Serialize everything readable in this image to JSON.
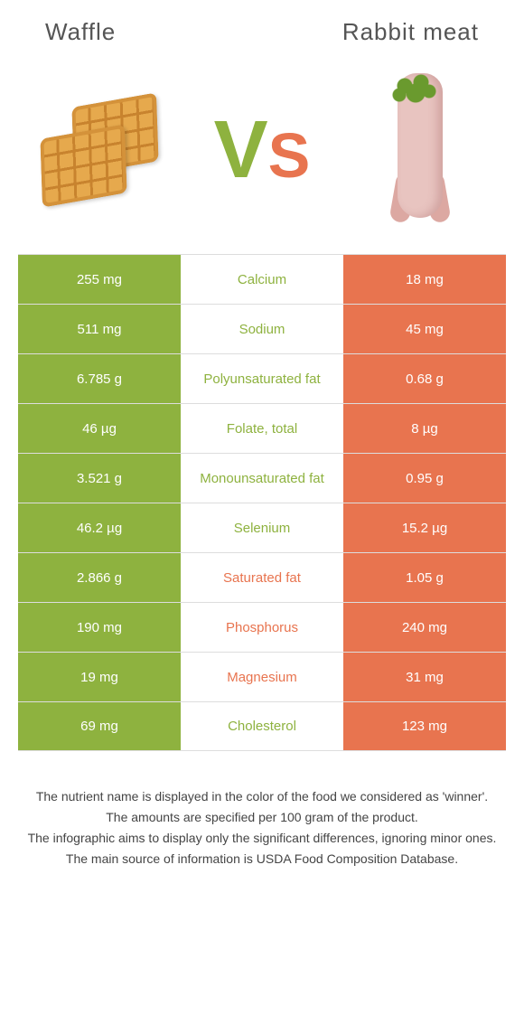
{
  "foods": {
    "left": {
      "name": "Waffle",
      "color": "#8eb23f"
    },
    "right": {
      "name": "Rabbit meat",
      "color": "#e8744f"
    }
  },
  "vs": {
    "v": "V",
    "s": "S",
    "v_color": "#8eb23f",
    "s_color": "#e8744f"
  },
  "rows": [
    {
      "nutrient": "Calcium",
      "left": "255 mg",
      "right": "18 mg",
      "winner": "left"
    },
    {
      "nutrient": "Sodium",
      "left": "511 mg",
      "right": "45 mg",
      "winner": "left"
    },
    {
      "nutrient": "Polyunsaturated fat",
      "left": "6.785 g",
      "right": "0.68 g",
      "winner": "left"
    },
    {
      "nutrient": "Folate, total",
      "left": "46 µg",
      "right": "8 µg",
      "winner": "left"
    },
    {
      "nutrient": "Monounsaturated fat",
      "left": "3.521 g",
      "right": "0.95 g",
      "winner": "left"
    },
    {
      "nutrient": "Selenium",
      "left": "46.2 µg",
      "right": "15.2 µg",
      "winner": "left"
    },
    {
      "nutrient": "Saturated fat",
      "left": "2.866 g",
      "right": "1.05 g",
      "winner": "right"
    },
    {
      "nutrient": "Phosphorus",
      "left": "190 mg",
      "right": "240 mg",
      "winner": "right"
    },
    {
      "nutrient": "Magnesium",
      "left": "19 mg",
      "right": "31 mg",
      "winner": "right"
    },
    {
      "nutrient": "Cholesterol",
      "left": "69 mg",
      "right": "123 mg",
      "winner": "left"
    }
  ],
  "footer": [
    "The nutrient name is displayed in the color of the food we considered as 'winner'.",
    "The amounts are specified per 100 gram of the product.",
    "The infographic aims to display only the significant differences, ignoring minor ones.",
    "The main source of information is USDA Food Composition Database."
  ]
}
